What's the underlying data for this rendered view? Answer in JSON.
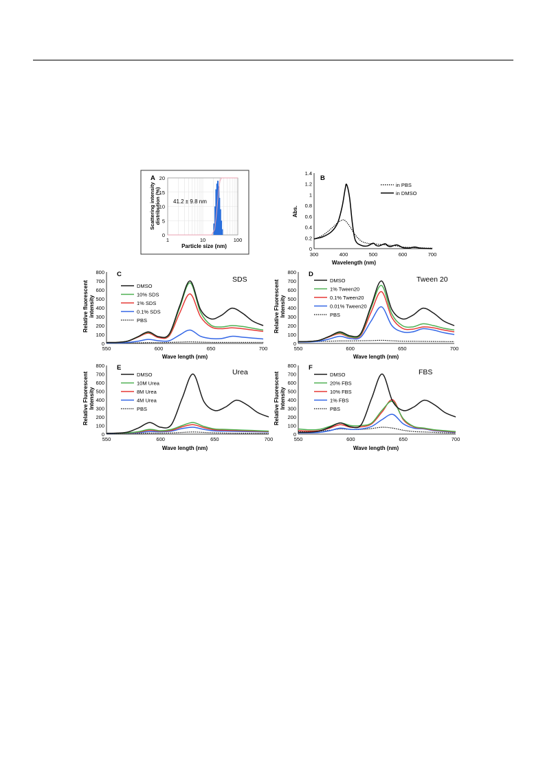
{
  "figure": {
    "panels": {
      "A": {
        "letter": "A",
        "annotation": "41.2 ± 9.8 nm",
        "xlabel": "Particle size (nm)",
        "ylabel_line1": "Scattering intensity",
        "ylabel_line2": "distribution (%)",
        "xticks": [
          "1",
          "10",
          "100"
        ],
        "yticks": [
          "0",
          "5",
          "10",
          "15",
          "20"
        ]
      },
      "B": {
        "letter": "B",
        "xlabel": "Wavelength (nm)",
        "ylabel": "Abs.",
        "xticks": [
          "300",
          "400",
          "500",
          "600",
          "700"
        ],
        "yticks": [
          "0",
          "0.2",
          "0.4",
          "0.6",
          "0.8",
          "1",
          "1.2",
          "1.4"
        ],
        "legend": [
          "in PBS",
          "in DMSO"
        ]
      },
      "C": {
        "letter": "C",
        "title": "SDS",
        "xlabel": "Wave length (nm)",
        "ylabel_line1": "Relative fluorescent",
        "ylabel_line2": "intensity",
        "legend": [
          "DMSO",
          "10%  SDS",
          "1%  SDS",
          "0.1%  SDS",
          "PBS"
        ]
      },
      "D": {
        "letter": "D",
        "title": "Tween 20",
        "xlabel": "Wave length (nm)",
        "ylabel_line1": "Relative Fluorescent",
        "ylabel_line2": "Intensity",
        "legend": [
          "DMSO",
          "1% Tween20",
          "0.1% Tween20",
          "0.01% Tween20",
          "PBS"
        ]
      },
      "E": {
        "letter": "E",
        "title": "Urea",
        "xlabel": "Wave length (nm)",
        "ylabel_line1": "Relative Fluorescent",
        "ylabel_line2": "Intensity",
        "legend": [
          "DMSO",
          "10M Urea",
          "8M Urea",
          "4M Urea",
          "PBS"
        ]
      },
      "F": {
        "letter": "F",
        "title": "FBS",
        "xlabel": "Wave length (nm)",
        "ylabel_line1": "Relative Fluorescent",
        "ylabel_line2": "Intensity",
        "legend": [
          "DMSO",
          "20% FBS",
          "10% FBS",
          "1% FBS",
          "PBS"
        ]
      }
    },
    "fluor_xticks": [
      "550",
      "600",
      "650",
      "700"
    ],
    "fluor_yticks": [
      "0",
      "100",
      "200",
      "300",
      "400",
      "500",
      "600",
      "700",
      "800"
    ],
    "colors": {
      "dmso": "#1a1a1a",
      "green": "#4caf50",
      "red": "#e53935",
      "blue": "#3366e6",
      "pbs": "#000000",
      "bars": "#2a6fdb",
      "cumulative": "#e8a0b0"
    }
  },
  "chart_data": [
    {
      "panel": "A",
      "type": "bar",
      "title": "",
      "xlabel": "Particle size (nm)",
      "ylabel": "Scattering intensity distribution (%)",
      "xscale": "log",
      "xlim": [
        1,
        100
      ],
      "ylim": [
        0,
        20
      ],
      "grid": true,
      "x": [
        21,
        22.5,
        24,
        25.5,
        27,
        28.5,
        30,
        32,
        34,
        36
      ],
      "values": [
        4,
        10,
        16,
        18,
        19,
        17,
        13,
        9,
        5,
        2
      ],
      "cumulative_line": true
    },
    {
      "panel": "B",
      "type": "line",
      "title": "",
      "xlabel": "Wavelength (nm)",
      "ylabel": "Abs.",
      "xlim": [
        300,
        700
      ],
      "ylim": [
        0,
        1.4
      ],
      "legend": "top-right",
      "series": [
        {
          "name": "in PBS",
          "style": "dotted",
          "x": [
            300,
            330,
            360,
            380,
            395,
            405,
            420,
            440,
            460,
            480,
            500,
            520,
            540,
            560,
            580,
            600,
            640,
            680,
            700
          ],
          "y": [
            0.18,
            0.25,
            0.38,
            0.48,
            0.53,
            0.52,
            0.42,
            0.25,
            0.14,
            0.1,
            0.09,
            0.08,
            0.07,
            0.06,
            0.05,
            0.03,
            0.02,
            0.01,
            0.01
          ]
        },
        {
          "name": "in DMSO",
          "style": "solid",
          "x": [
            300,
            330,
            360,
            380,
            395,
            405,
            410,
            420,
            430,
            440,
            460,
            480,
            500,
            510,
            520,
            540,
            550,
            560,
            580,
            600,
            620,
            640,
            660,
            700
          ],
          "y": [
            0.18,
            0.22,
            0.32,
            0.48,
            0.78,
            1.1,
            1.19,
            0.95,
            0.45,
            0.15,
            0.06,
            0.05,
            0.1,
            0.06,
            0.05,
            0.09,
            0.05,
            0.04,
            0.07,
            0.02,
            0.01,
            0.03,
            0.01,
            0
          ]
        }
      ]
    },
    {
      "panel": "C",
      "type": "line",
      "title": "SDS",
      "xlabel": "Wave length (nm)",
      "ylabel": "Relative fluorescent intensity",
      "xlim": [
        550,
        700
      ],
      "ylim": [
        0,
        800
      ],
      "legend": "top-left",
      "x": [
        550,
        560,
        570,
        580,
        590,
        600,
        610,
        620,
        630,
        640,
        650,
        660,
        670,
        680,
        690,
        700
      ],
      "series": [
        {
          "name": "DMSO",
          "y": [
            10,
            12,
            25,
            75,
            130,
            75,
            105,
            420,
            700,
            380,
            275,
            315,
            395,
            340,
            250,
            200
          ]
        },
        {
          "name": "10%  SDS",
          "y": [
            10,
            12,
            25,
            75,
            125,
            75,
            100,
            400,
            680,
            350,
            205,
            185,
            200,
            190,
            170,
            150
          ]
        },
        {
          "name": "1%  SDS",
          "y": [
            10,
            12,
            25,
            70,
            115,
            65,
            85,
            340,
            555,
            300,
            185,
            165,
            175,
            165,
            150,
            135
          ]
        },
        {
          "name": "0.1%  SDS",
          "y": [
            5,
            6,
            10,
            25,
            45,
            30,
            30,
            95,
            150,
            80,
            55,
            55,
            80,
            70,
            60,
            50
          ]
        },
        {
          "name": "PBS",
          "y": [
            5,
            5,
            6,
            7,
            10,
            10,
            12,
            15,
            18,
            15,
            12,
            12,
            12,
            12,
            12,
            12
          ]
        }
      ]
    },
    {
      "panel": "D",
      "type": "line",
      "title": "Tween 20",
      "xlabel": "Wave length (nm)",
      "ylabel": "Relative Fluorescent Intensity",
      "xlim": [
        550,
        700
      ],
      "ylim": [
        0,
        800
      ],
      "legend": "top-left",
      "x": [
        550,
        560,
        570,
        580,
        590,
        600,
        610,
        620,
        630,
        640,
        650,
        660,
        670,
        680,
        690,
        700
      ],
      "series": [
        {
          "name": "DMSO",
          "y": [
            20,
            22,
            35,
            80,
            130,
            85,
            110,
            420,
            700,
            380,
            275,
            315,
            395,
            340,
            250,
            200
          ]
        },
        {
          "name": "1% Tween20",
          "y": [
            20,
            22,
            35,
            80,
            120,
            75,
            100,
            400,
            650,
            330,
            200,
            185,
            220,
            200,
            170,
            150
          ]
        },
        {
          "name": "0.1% Tween20",
          "y": [
            20,
            22,
            35,
            75,
            110,
            70,
            90,
            350,
            580,
            290,
            170,
            160,
            185,
            175,
            150,
            130
          ]
        },
        {
          "name": "0.01% Tween20",
          "y": [
            15,
            16,
            25,
            50,
            80,
            55,
            70,
            250,
            410,
            200,
            130,
            130,
            165,
            150,
            120,
            100
          ]
        },
        {
          "name": "PBS",
          "y": [
            20,
            20,
            22,
            25,
            28,
            28,
            30,
            32,
            35,
            30,
            25,
            24,
            23,
            22,
            21,
            20
          ]
        }
      ]
    },
    {
      "panel": "E",
      "type": "line",
      "title": "Urea",
      "xlabel": "Wave length (nm)",
      "ylabel": "Relative Fluorescent Intensity",
      "xlim": [
        550,
        700
      ],
      "ylim": [
        0,
        800
      ],
      "legend": "top-left",
      "x": [
        550,
        560,
        570,
        580,
        590,
        600,
        610,
        620,
        630,
        640,
        650,
        660,
        670,
        680,
        690,
        700
      ],
      "series": [
        {
          "name": "DMSO",
          "y": [
            10,
            12,
            25,
            75,
            135,
            80,
            110,
            420,
            700,
            380,
            275,
            315,
            395,
            340,
            250,
            200
          ]
        },
        {
          "name": "10M Urea",
          "y": [
            10,
            11,
            15,
            30,
            55,
            40,
            55,
            100,
            135,
            90,
            60,
            55,
            50,
            45,
            40,
            35
          ]
        },
        {
          "name": "8M Urea",
          "y": [
            10,
            11,
            14,
            25,
            45,
            35,
            45,
            85,
            110,
            75,
            50,
            45,
            42,
            38,
            34,
            30
          ]
        },
        {
          "name": "4M Urea",
          "y": [
            8,
            9,
            12,
            18,
            30,
            28,
            35,
            65,
            80,
            55,
            38,
            35,
            32,
            30,
            28,
            25
          ]
        },
        {
          "name": "PBS",
          "y": [
            5,
            5,
            6,
            8,
            12,
            12,
            14,
            20,
            25,
            20,
            15,
            12,
            10,
            10,
            9,
            8
          ]
        }
      ]
    },
    {
      "panel": "F",
      "type": "line",
      "title": "FBS",
      "xlabel": "Wave length (nm)",
      "ylabel": "Relative Fluorescent Intensity",
      "xlim": [
        550,
        700
      ],
      "ylim": [
        0,
        800
      ],
      "legend": "top-left",
      "x": [
        550,
        560,
        570,
        580,
        590,
        600,
        610,
        620,
        630,
        640,
        650,
        660,
        670,
        680,
        690,
        700
      ],
      "series": [
        {
          "name": "DMSO",
          "y": [
            20,
            22,
            35,
            80,
            130,
            85,
            110,
            420,
            700,
            380,
            275,
            315,
            395,
            340,
            250,
            200
          ]
        },
        {
          "name": "20% FBS",
          "y": [
            60,
            50,
            55,
            90,
            130,
            100,
            100,
            130,
            280,
            380,
            180,
            90,
            70,
            50,
            40,
            30
          ]
        },
        {
          "name": "10% FBS",
          "y": [
            40,
            35,
            40,
            70,
            110,
            80,
            85,
            120,
            260,
            400,
            170,
            85,
            65,
            45,
            35,
            25
          ]
        },
        {
          "name": "1% FBS",
          "y": [
            15,
            15,
            20,
            40,
            70,
            55,
            60,
            90,
            170,
            230,
            120,
            70,
            60,
            40,
            30,
            20
          ]
        },
        {
          "name": "PBS",
          "y": [
            30,
            30,
            35,
            45,
            60,
            55,
            55,
            65,
            80,
            70,
            45,
            30,
            25,
            20,
            15,
            12
          ]
        }
      ]
    }
  ]
}
